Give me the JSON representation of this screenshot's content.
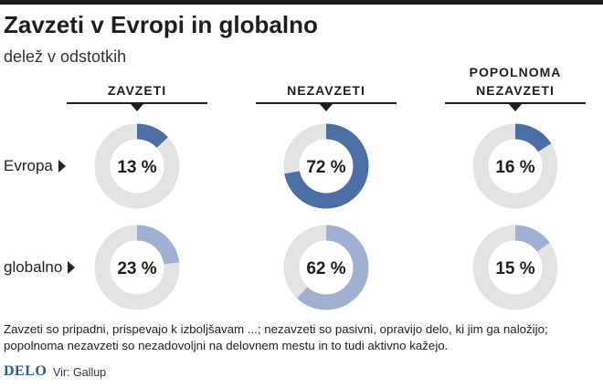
{
  "header": {
    "title": "Zavzeti v Evropi in globalno",
    "subtitle": "delež v odstotkih"
  },
  "columns": [
    {
      "line1": "",
      "line2": "ZAVZETI"
    },
    {
      "line1": "",
      "line2": "NEZAVZETI"
    },
    {
      "line1": "POPOLNOMA",
      "line2": "NEZAVZETI"
    }
  ],
  "rows": [
    {
      "label": "Evropa"
    },
    {
      "label": "globalno"
    }
  ],
  "chart_data": {
    "type": "pie",
    "categories": [
      "ZAVZETI",
      "NEZAVZETI",
      "POPOLNOMA NEZAVZETI"
    ],
    "series": [
      {
        "name": "Evropa",
        "values": [
          13,
          72,
          16
        ],
        "labels": [
          "13 %",
          "72 %",
          "16 %"
        ]
      },
      {
        "name": "globalno",
        "values": [
          23,
          62,
          15
        ],
        "labels": [
          "23 %",
          "62 %",
          "15 %"
        ]
      }
    ],
    "colors": {
      "Evropa": "#4b6fa5",
      "globalno": "#9fb1d3",
      "remainder": "#e3e3e3"
    }
  },
  "footer": {
    "note": "Zavzeti so pripadni, prispevajo k izboljšavam ...; nezavzeti so pasivni, opravijo delo, ki jim ga naložijo; popolnoma nezavzeti so nezadovoljni na delovnem mestu in to tudi aktivno kažejo.",
    "logo": "DELO",
    "source": "Vir: Gallup"
  }
}
